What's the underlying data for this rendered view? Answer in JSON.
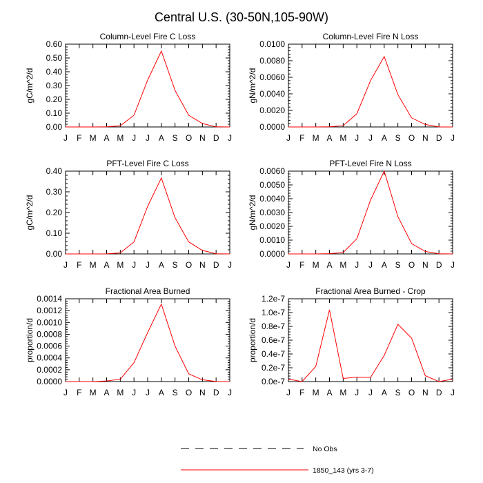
{
  "figure": {
    "title": "Central U.S. (30-50N,105-90W)"
  },
  "colors": {
    "model": "#ff0000",
    "obs": "#000000",
    "axis": "#000000"
  },
  "legend": {
    "items": [
      {
        "label": "No Obs",
        "style": "dashed",
        "color": "#000000"
      },
      {
        "label": "1850_143 (yrs 3-7)",
        "style": "solid",
        "color": "#ff0000"
      }
    ]
  },
  "chart_data": [
    {
      "type": "line",
      "title": "Column-Level Fire C Loss",
      "ylabel": "gC/m^2/d",
      "xlabel": "",
      "x": [
        "J",
        "F",
        "M",
        "A",
        "M",
        "J",
        "J",
        "A",
        "S",
        "O",
        "N",
        "D",
        "J"
      ],
      "ylim": [
        0,
        0.6
      ],
      "yticks": [
        "0.00",
        "0.10",
        "0.20",
        "0.30",
        "0.40",
        "0.50",
        "0.60"
      ],
      "series": [
        {
          "values": [
            0.0,
            0.0,
            0.0,
            0.001,
            0.008,
            0.085,
            0.34,
            0.55,
            0.265,
            0.085,
            0.025,
            0.001,
            0.0
          ]
        }
      ]
    },
    {
      "type": "line",
      "title": "Column-Level Fire N Loss",
      "ylabel": "gN/m^2/d",
      "xlabel": "",
      "x": [
        "J",
        "F",
        "M",
        "A",
        "M",
        "J",
        "J",
        "A",
        "S",
        "O",
        "N",
        "D",
        "J"
      ],
      "ylim": [
        0,
        0.01
      ],
      "yticks": [
        "0.0000",
        "0.0020",
        "0.0040",
        "0.0060",
        "0.0080",
        "0.0100"
      ],
      "series": [
        {
          "values": [
            0.0,
            0.0,
            0.0,
            2e-05,
            0.00015,
            0.0016,
            0.0056,
            0.0085,
            0.0039,
            0.0011,
            0.0003,
            1e-05,
            0.0
          ]
        }
      ]
    },
    {
      "type": "line",
      "title": "PFT-Level Fire C Loss",
      "ylabel": "gC/m^2/d",
      "xlabel": "",
      "x": [
        "J",
        "F",
        "M",
        "A",
        "M",
        "J",
        "J",
        "A",
        "S",
        "O",
        "N",
        "D",
        "J"
      ],
      "ylim": [
        0,
        0.4
      ],
      "yticks": [
        "0.00",
        "0.10",
        "0.20",
        "0.30",
        "0.40"
      ],
      "series": [
        {
          "values": [
            0.0,
            0.0,
            0.0,
            0.0005,
            0.005,
            0.058,
            0.23,
            0.367,
            0.175,
            0.058,
            0.017,
            0.001,
            0.0
          ]
        }
      ]
    },
    {
      "type": "line",
      "title": "PFT-Level Fire N Loss",
      "ylabel": "gN/m^2/d",
      "xlabel": "",
      "x": [
        "J",
        "F",
        "M",
        "A",
        "M",
        "J",
        "J",
        "A",
        "S",
        "O",
        "N",
        "D",
        "J"
      ],
      "ylim": [
        0,
        0.006
      ],
      "yticks": [
        "0.0000",
        "0.0010",
        "0.0020",
        "0.0030",
        "0.0040",
        "0.0050",
        "0.0060"
      ],
      "series": [
        {
          "values": [
            0.0,
            0.0,
            0.0,
            2e-05,
            0.0001,
            0.0011,
            0.0039,
            0.006,
            0.0027,
            0.00075,
            0.00018,
            1e-05,
            0.0
          ]
        }
      ]
    },
    {
      "type": "line",
      "title": "Fractional Area Burned",
      "ylabel": "proportion/d",
      "xlabel": "",
      "x": [
        "J",
        "F",
        "M",
        "A",
        "M",
        "J",
        "J",
        "A",
        "S",
        "O",
        "N",
        "D",
        "J"
      ],
      "ylim": [
        0,
        0.0014
      ],
      "yticks": [
        "0.0000",
        "0.0002",
        "0.0004",
        "0.0006",
        "0.0008",
        "0.0010",
        "0.0012",
        "0.0014"
      ],
      "series": [
        {
          "values": [
            0.0,
            0.0,
            0.0,
            1e-05,
            4e-05,
            0.00032,
            0.00083,
            0.00131,
            0.0006,
            0.00013,
            3e-05,
            2e-06,
            0.0
          ]
        }
      ]
    },
    {
      "type": "line",
      "title": "Fractional Area Burned - Crop",
      "ylabel": "proportion/d",
      "xlabel": "",
      "x": [
        "J",
        "F",
        "M",
        "A",
        "M",
        "J",
        "J",
        "A",
        "S",
        "O",
        "N",
        "D",
        "J"
      ],
      "ylim": [
        0,
        1.2e-07
      ],
      "yticks": [
        "0.0e-7",
        "0.2e-7",
        "0.4e-7",
        "0.6e-7",
        "0.8e-7",
        "1.0e-7",
        "1.2e-7"
      ],
      "series": [
        {
          "values": [
            3.5e-09,
            0.0,
            2.2e-08,
            1.04e-07,
            4.5e-09,
            6.5e-09,
            6e-09,
            3.8e-08,
            8.3e-08,
            6.3e-08,
            8.5e-09,
            0.0,
            3.5e-09
          ]
        }
      ]
    }
  ]
}
